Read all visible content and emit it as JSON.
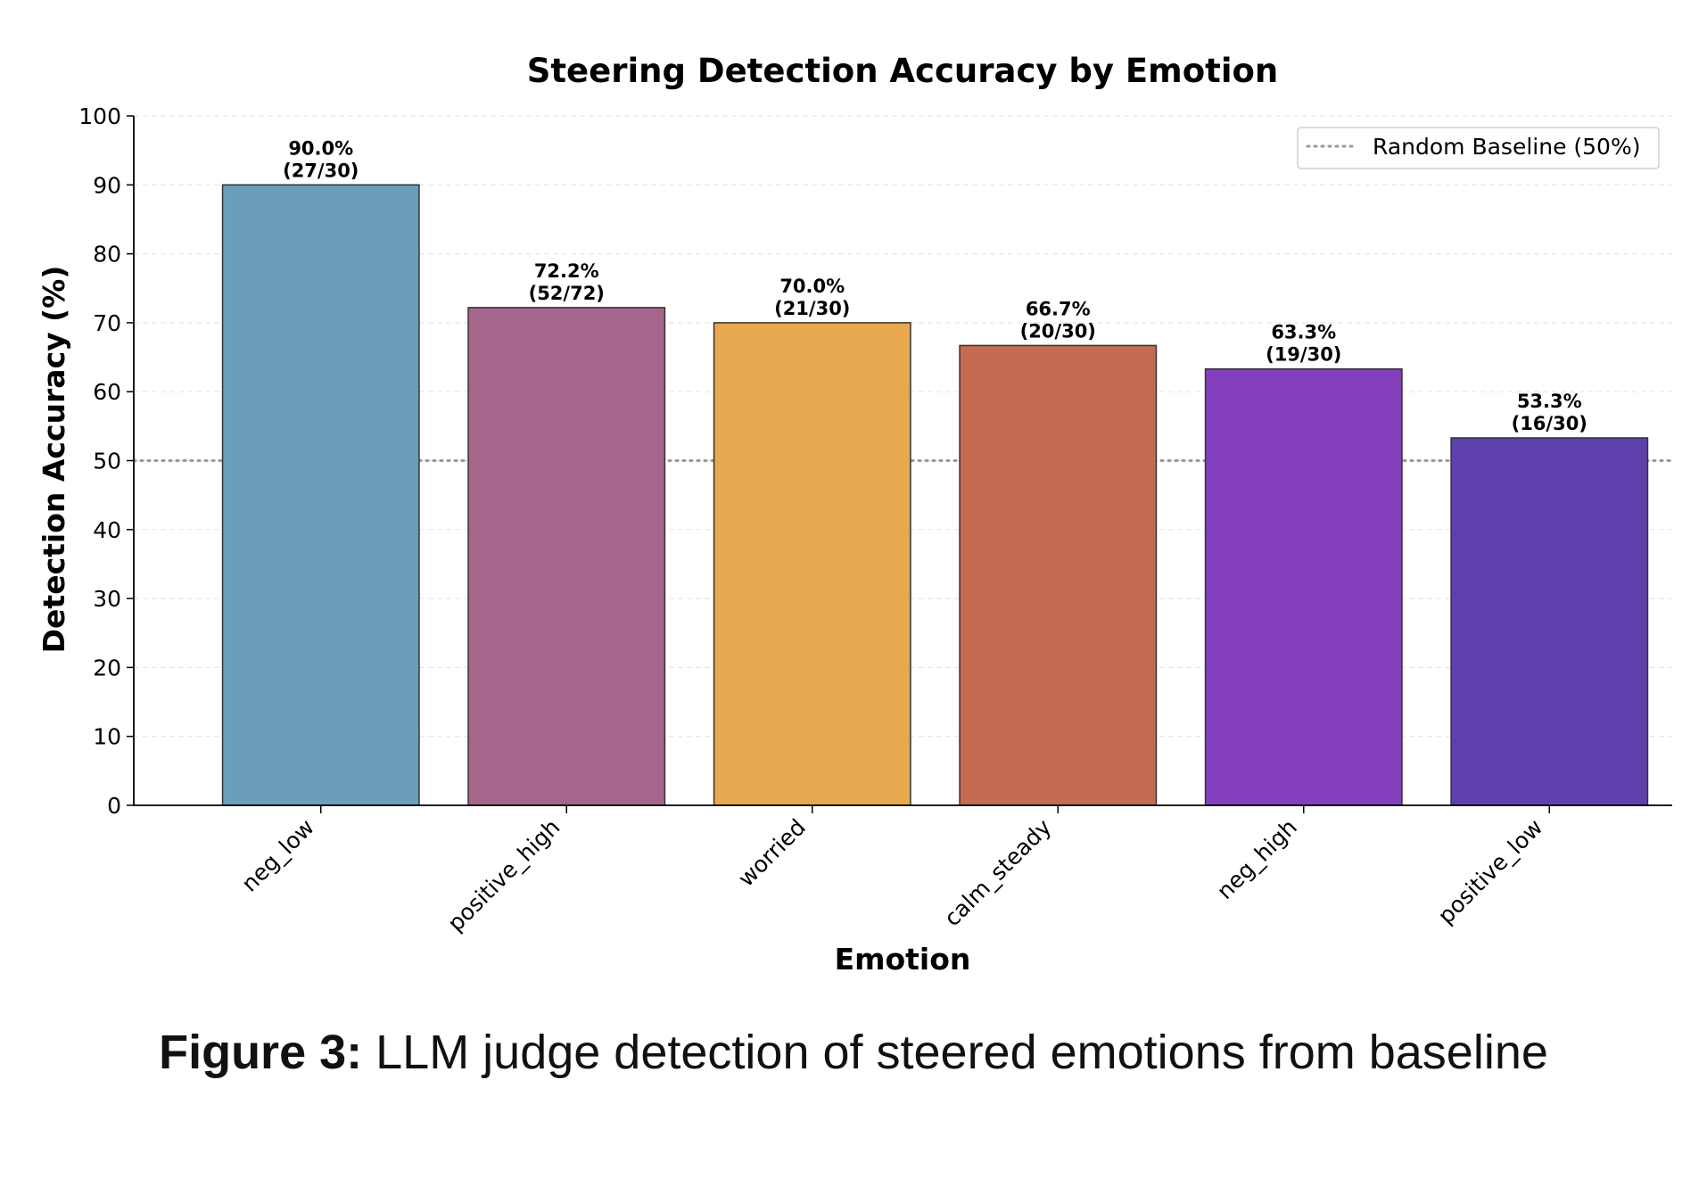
{
  "chart_data": {
    "type": "bar",
    "title": "Steering Detection Accuracy by Emotion",
    "xlabel": "Emotion",
    "ylabel": "Detection Accuracy (%)",
    "ylim": [
      0,
      100
    ],
    "yticks": [
      0,
      10,
      20,
      30,
      40,
      50,
      60,
      70,
      80,
      90,
      100
    ],
    "grid": true,
    "categories": [
      "neg_low",
      "positive_high",
      "worried",
      "calm_steady",
      "neg_high",
      "positive_low"
    ],
    "values": [
      90.0,
      72.2,
      70.0,
      66.7,
      63.3,
      53.3
    ],
    "percent_labels": [
      "90.0%",
      "72.2%",
      "70.0%",
      "66.7%",
      "63.3%",
      "53.3%"
    ],
    "count_labels": [
      "(27/30)",
      "(52/72)",
      "(21/30)",
      "(20/30)",
      "(19/30)",
      "(16/30)"
    ],
    "colors": [
      "#6a9ebb",
      "#a6668b",
      "#e8a84f",
      "#c46b51",
      "#843fbd",
      "#5e40ad"
    ],
    "baseline": {
      "value": 50,
      "label": "Random Baseline (50%)",
      "color": "#999999"
    },
    "legend_position": "top-right"
  },
  "caption": {
    "label": "Figure 3:",
    "text": " LLM judge detection of steered emotions from baseline"
  }
}
